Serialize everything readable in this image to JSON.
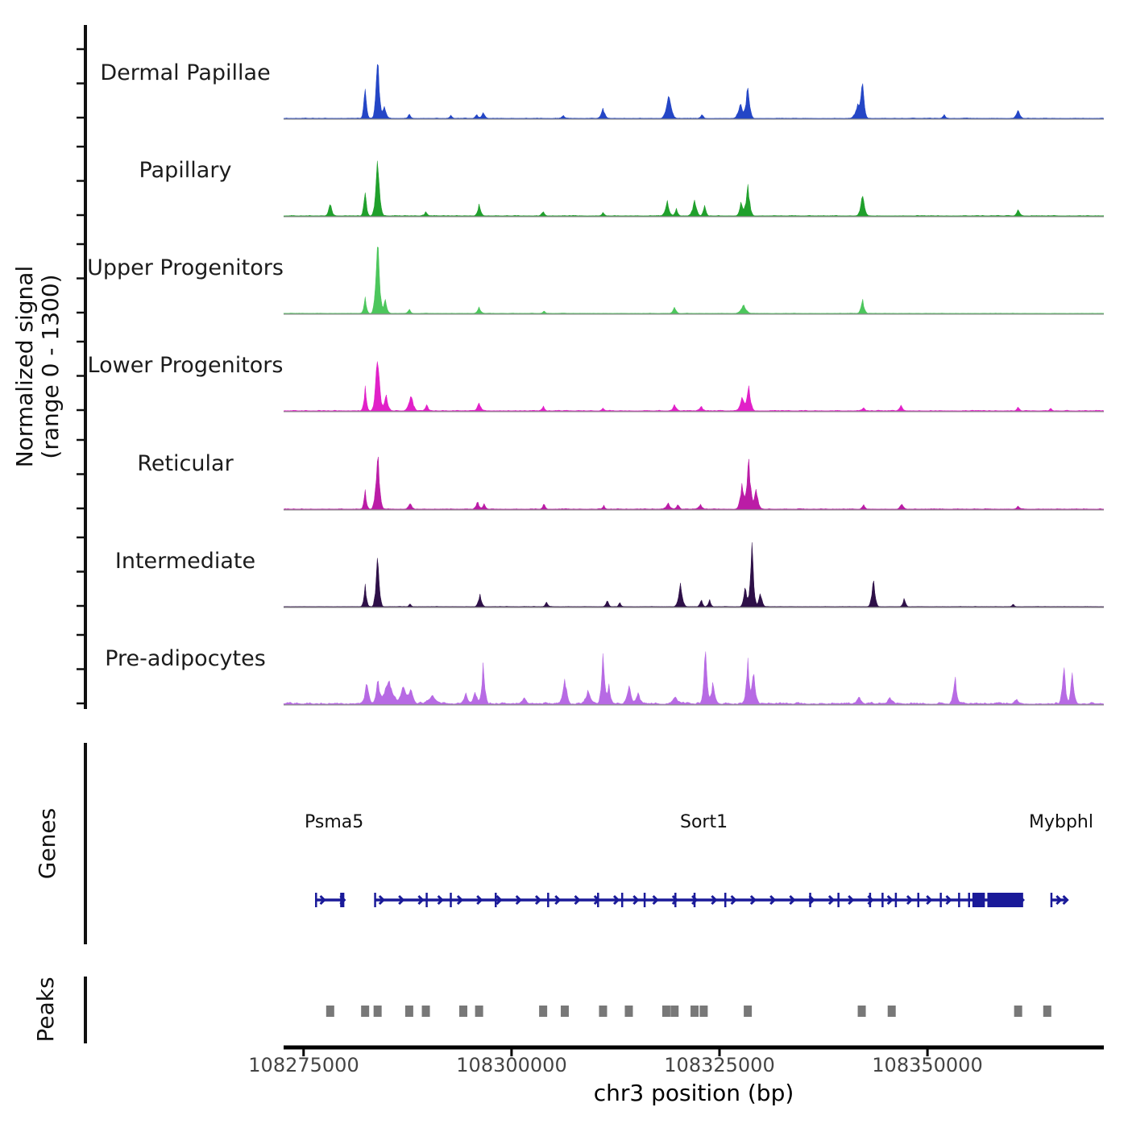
{
  "chart_data": {
    "type": "area",
    "title": "",
    "y_axis": {
      "label_line1": "Normalized signal",
      "label_line2": "(range 0 - 1300)",
      "range": [
        0,
        1300
      ],
      "tick_values": [
        0,
        650,
        1300
      ]
    },
    "x_axis": {
      "label": "chr3 position (bp)",
      "view_start": 108272600,
      "view_end": 108371200,
      "ticks": [
        {
          "bp": 108275000,
          "label": "108275000"
        },
        {
          "bp": 108300000,
          "label": "108300000"
        },
        {
          "bp": 108325000,
          "label": "108325000"
        },
        {
          "bp": 108350000,
          "label": "108350000"
        }
      ]
    },
    "tracks": [
      {
        "name": "Dermal Papillae",
        "color": "#2446c6",
        "noise": 14,
        "peaks": [
          [
            108282400,
            630,
            500
          ],
          [
            108283900,
            1280,
            600
          ],
          [
            108284700,
            240,
            700
          ],
          [
            108287700,
            90,
            500
          ],
          [
            108292700,
            60,
            500
          ],
          [
            108295800,
            90,
            500
          ],
          [
            108296600,
            120,
            600
          ],
          [
            108306200,
            70,
            500
          ],
          [
            108311000,
            190,
            700
          ],
          [
            108318900,
            470,
            900
          ],
          [
            108322900,
            90,
            500
          ],
          [
            108327500,
            300,
            800
          ],
          [
            108328400,
            680,
            700
          ],
          [
            108341600,
            280,
            900
          ],
          [
            108342200,
            760,
            600
          ],
          [
            108352000,
            80,
            500
          ],
          [
            108360900,
            170,
            700
          ]
        ]
      },
      {
        "name": "Papillary",
        "color": "#20a02c",
        "noise": 16,
        "peaks": [
          [
            108278200,
            250,
            600
          ],
          [
            108282400,
            520,
            500
          ],
          [
            108283900,
            1150,
            700
          ],
          [
            108289700,
            80,
            500
          ],
          [
            108296100,
            230,
            600
          ],
          [
            108303800,
            100,
            500
          ],
          [
            108311000,
            70,
            500
          ],
          [
            108318700,
            290,
            700
          ],
          [
            108319800,
            150,
            500
          ],
          [
            108322000,
            330,
            700
          ],
          [
            108323200,
            220,
            500
          ],
          [
            108327600,
            280,
            600
          ],
          [
            108328400,
            620,
            700
          ],
          [
            108342200,
            430,
            700
          ],
          [
            108360900,
            130,
            600
          ]
        ]
      },
      {
        "name": "Upper Progenitors",
        "color": "#4cc65c",
        "noise": 10,
        "peaks": [
          [
            108282400,
            300,
            500
          ],
          [
            108283900,
            1500,
            700
          ],
          [
            108284800,
            280,
            600
          ],
          [
            108287700,
            90,
            500
          ],
          [
            108296100,
            120,
            600
          ],
          [
            108303900,
            60,
            400
          ],
          [
            108319600,
            130,
            600
          ],
          [
            108327900,
            180,
            900
          ],
          [
            108342200,
            270,
            600
          ]
        ]
      },
      {
        "name": "Lower Progenitors",
        "color": "#e120c8",
        "noise": 20,
        "peaks": [
          [
            108282400,
            430,
            500
          ],
          [
            108283900,
            1250,
            700
          ],
          [
            108284900,
            320,
            700
          ],
          [
            108287900,
            350,
            800
          ],
          [
            108289800,
            130,
            500
          ],
          [
            108296100,
            170,
            600
          ],
          [
            108303800,
            90,
            500
          ],
          [
            108311000,
            60,
            400
          ],
          [
            108319600,
            110,
            700
          ],
          [
            108322800,
            90,
            600
          ],
          [
            108327700,
            300,
            700
          ],
          [
            108328500,
            470,
            700
          ],
          [
            108342300,
            70,
            500
          ],
          [
            108346800,
            110,
            600
          ],
          [
            108360900,
            80,
            500
          ],
          [
            108364800,
            60,
            400
          ]
        ]
      },
      {
        "name": "Reticular",
        "color": "#bb1ca6",
        "noise": 18,
        "peaks": [
          [
            108282400,
            340,
            500
          ],
          [
            108283900,
            1150,
            700
          ],
          [
            108287800,
            140,
            600
          ],
          [
            108295900,
            150,
            600
          ],
          [
            108296700,
            120,
            500
          ],
          [
            108303900,
            110,
            500
          ],
          [
            108311100,
            70,
            400
          ],
          [
            108318800,
            130,
            700
          ],
          [
            108320000,
            110,
            500
          ],
          [
            108322700,
            100,
            600
          ],
          [
            108327700,
            480,
            700
          ],
          [
            108328500,
            1020,
            700
          ],
          [
            108329400,
            420,
            700
          ],
          [
            108342300,
            90,
            500
          ],
          [
            108346900,
            120,
            600
          ],
          [
            108360900,
            70,
            500
          ]
        ]
      },
      {
        "name": "Intermediate",
        "color": "#2e1048",
        "noise": 10,
        "peaks": [
          [
            108282400,
            420,
            500
          ],
          [
            108283900,
            1120,
            600
          ],
          [
            108287800,
            60,
            400
          ],
          [
            108296200,
            250,
            600
          ],
          [
            108304200,
            100,
            500
          ],
          [
            108311500,
            130,
            500
          ],
          [
            108313000,
            90,
            400
          ],
          [
            108320300,
            450,
            700
          ],
          [
            108322800,
            140,
            500
          ],
          [
            108323800,
            140,
            500
          ],
          [
            108328100,
            400,
            600
          ],
          [
            108328900,
            1300,
            600
          ],
          [
            108329900,
            300,
            600
          ],
          [
            108343500,
            560,
            600
          ],
          [
            108347200,
            180,
            500
          ],
          [
            108360300,
            60,
            400
          ]
        ]
      },
      {
        "name": "Pre-adipocytes",
        "color": "#b76ae4",
        "noise": 55,
        "peaks": [
          [
            108282600,
            450,
            700
          ],
          [
            108283900,
            520,
            600
          ],
          [
            108285200,
            480,
            1500
          ],
          [
            108287000,
            350,
            1000
          ],
          [
            108287900,
            280,
            800
          ],
          [
            108290500,
            150,
            1500
          ],
          [
            108294500,
            200,
            800
          ],
          [
            108295600,
            250,
            700
          ],
          [
            108296600,
            780,
            600
          ],
          [
            108301500,
            120,
            800
          ],
          [
            108306400,
            540,
            700
          ],
          [
            108309200,
            250,
            900
          ],
          [
            108311000,
            950,
            600
          ],
          [
            108311700,
            350,
            600
          ],
          [
            108314100,
            380,
            700
          ],
          [
            108315200,
            260,
            600
          ],
          [
            108319700,
            150,
            800
          ],
          [
            108323300,
            1120,
            600
          ],
          [
            108324200,
            420,
            700
          ],
          [
            108328400,
            880,
            600
          ],
          [
            108329100,
            700,
            600
          ],
          [
            108341800,
            120,
            900
          ],
          [
            108345500,
            130,
            800
          ],
          [
            108353300,
            560,
            600
          ],
          [
            108360700,
            100,
            800
          ],
          [
            108366400,
            800,
            600
          ],
          [
            108367400,
            620,
            600
          ]
        ]
      }
    ],
    "genes": {
      "label": "Genes",
      "color": "#1a1a99",
      "items": [
        {
          "name": "Psma5",
          "start": 108276400,
          "end": 108279900,
          "strand": "+",
          "exon_blocks": [
            [
              108279400,
              108279900
            ]
          ],
          "exon_ticks": [
            108276500
          ]
        },
        {
          "name": "Sort1",
          "start": 108283500,
          "end": 108361500,
          "strand": "+",
          "exon_blocks": [
            [
              108355400,
              108356900
            ],
            [
              108357200,
              108361500
            ]
          ],
          "exon_ticks": [
            108283600,
            108289800,
            108292700,
            108298100,
            108304400,
            108310400,
            108313300,
            108316000,
            108319700,
            108322000,
            108325700,
            108335900,
            108339300,
            108343100,
            108344600,
            108346200,
            108348900,
            108351600,
            108353800,
            108355000
          ]
        },
        {
          "name": "Mybphl",
          "start": 108364900,
          "end": 108366800,
          "strand": "+",
          "exon_blocks": [],
          "exon_ticks": [
            108364900
          ]
        }
      ]
    },
    "peaks_track": {
      "label": "Peaks",
      "color": "#787878",
      "positions": [
        108278200,
        108282400,
        108283900,
        108287700,
        108289700,
        108294200,
        108296100,
        108303800,
        108306400,
        108311000,
        108314100,
        108318600,
        108319600,
        108322000,
        108323100,
        108328400,
        108342100,
        108345700,
        108360900,
        108364400
      ]
    }
  }
}
